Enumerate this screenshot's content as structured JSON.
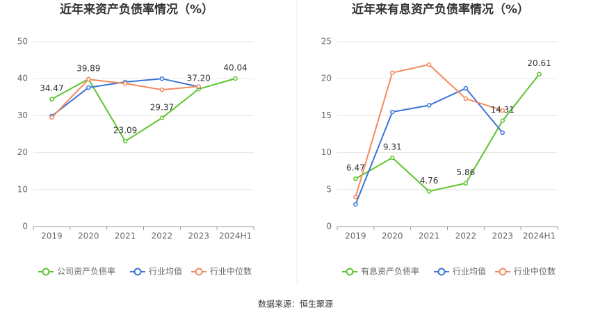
{
  "chart_data": [
    {
      "type": "line",
      "title": "近年来资产负债率情况（%）",
      "categories": [
        "2019",
        "2020",
        "2021",
        "2022",
        "2023",
        "2024H1"
      ],
      "ylim": [
        0,
        50
      ],
      "yticks": [
        0,
        10,
        20,
        30,
        40,
        50
      ],
      "grid": true,
      "legend": "bottom",
      "series": [
        {
          "name": "公司资产负债率",
          "color": "#5cc42c",
          "values": [
            34.47,
            39.89,
            23.09,
            29.37,
            37.2,
            40.04
          ],
          "value_labels": [
            "34.47",
            "39.89",
            "23.09",
            "29.37",
            "37.20",
            "40.04"
          ]
        },
        {
          "name": "行业均值",
          "color": "#3b74d9",
          "values": [
            29.9,
            37.6,
            39.1,
            40.0,
            37.8,
            null
          ]
        },
        {
          "name": "行业中位数",
          "color": "#f28a5f",
          "values": [
            29.5,
            39.8,
            38.7,
            37.0,
            37.9,
            null
          ]
        }
      ]
    },
    {
      "type": "line",
      "title": "近年来有息资产负债率情况（%）",
      "categories": [
        "2019",
        "2020",
        "2021",
        "2022",
        "2023",
        "2024H1"
      ],
      "ylim": [
        0,
        25
      ],
      "yticks": [
        0,
        5,
        10,
        15,
        20,
        25
      ],
      "grid": true,
      "legend": "bottom",
      "series": [
        {
          "name": "有息资产负债率",
          "color": "#5cc42c",
          "values": [
            6.47,
            9.31,
            4.76,
            5.86,
            14.31,
            20.61
          ],
          "value_labels": [
            "6.47",
            "9.31",
            "4.76",
            "5.86",
            "14.31",
            "20.61"
          ]
        },
        {
          "name": "行业均值",
          "color": "#3b74d9",
          "values": [
            3.0,
            15.5,
            16.4,
            18.7,
            12.7,
            null
          ]
        },
        {
          "name": "行业中位数",
          "color": "#f28a5f",
          "values": [
            4.0,
            20.8,
            21.9,
            17.3,
            15.7,
            null
          ]
        }
      ]
    }
  ],
  "source": "数据来源：恒生聚源"
}
